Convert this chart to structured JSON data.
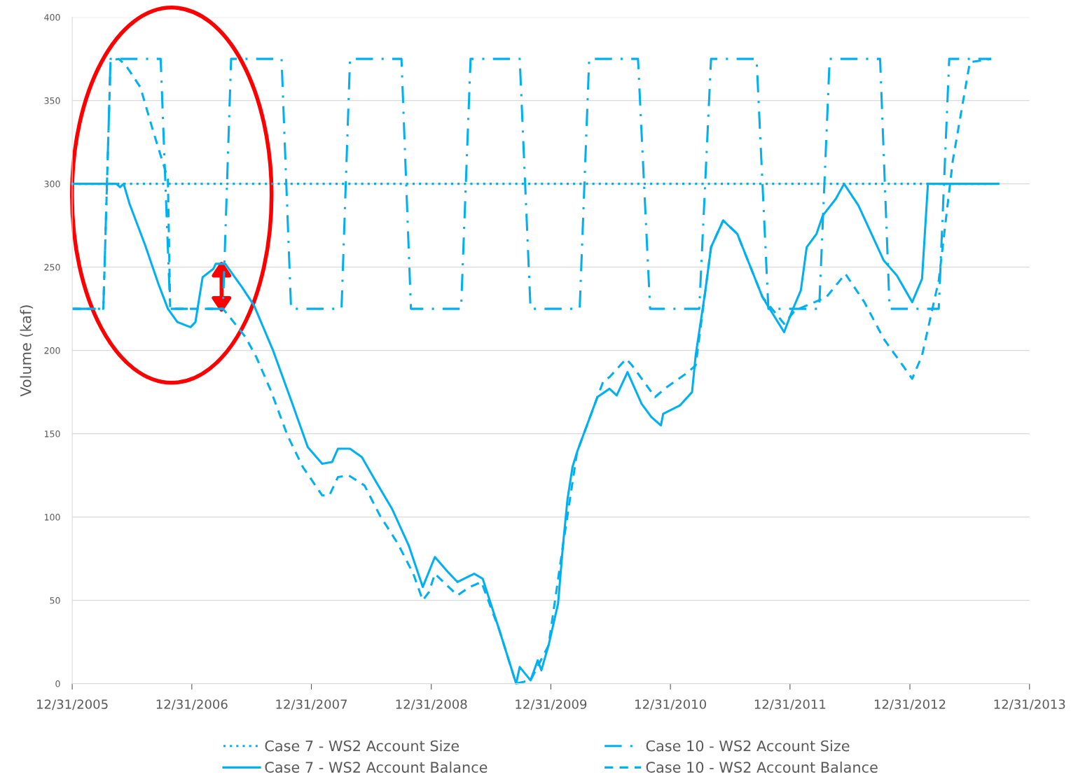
{
  "chart_data": {
    "type": "line",
    "ylabel": "Volume (kaf)",
    "xlim": [
      "2005-12-31",
      "2013-12-31"
    ],
    "xticks": [
      {
        "value": "2005-12-31",
        "label": "12/31/2005"
      },
      {
        "value": "2006-12-31",
        "label": "12/31/2006"
      },
      {
        "value": "2007-12-31",
        "label": "12/31/2007"
      },
      {
        "value": "2008-12-31",
        "label": "12/31/2008"
      },
      {
        "value": "2009-12-31",
        "label": "12/31/2009"
      },
      {
        "value": "2010-12-31",
        "label": "12/31/2010"
      },
      {
        "value": "2011-12-31",
        "label": "12/31/2011"
      },
      {
        "value": "2012-12-31",
        "label": "12/31/2012"
      },
      {
        "value": "2013-12-31",
        "label": "12/31/2013"
      }
    ],
    "ylim": [
      0,
      400
    ],
    "yticks": [
      0,
      50,
      100,
      150,
      200,
      250,
      300,
      350,
      400
    ],
    "grid": "y",
    "legend": "bottom",
    "marker": "none",
    "series": [
      {
        "name": "Case 7 - WS2 Account Size",
        "color": "#00b0f0",
        "line_style": "dotted",
        "x": [
          "2005-12-31",
          "2013-09-05"
        ],
        "values": [
          300,
          300
        ]
      },
      {
        "name": "Case 7 - WS2 Account Balance",
        "color": "#00b0f0",
        "line_style": "solid",
        "x": [
          "2005-12-31",
          "2006-05-15",
          "2006-05-26",
          "2006-06-06",
          "2006-06-24",
          "2006-08-11",
          "2006-09-20",
          "2006-10-19",
          "2006-11-17",
          "2006-12-27",
          "2007-01-11",
          "2007-02-02",
          "2007-03-07",
          "2007-03-14",
          "2007-04-12",
          "2007-06-02",
          "2007-07-09",
          "2007-09-05",
          "2007-11-03",
          "2007-12-20",
          "2008-02-02",
          "2008-03-03",
          "2008-03-21",
          "2008-04-27",
          "2008-06-02",
          "2008-07-16",
          "2008-09-02",
          "2008-10-23",
          "2008-12-05",
          "2009-01-11",
          "2009-02-20",
          "2009-03-21",
          "2009-05-11",
          "2009-06-06",
          "2009-07-27",
          "2009-09-16",
          "2009-09-27",
          "2009-10-30",
          "2009-11-21",
          "2009-12-02",
          "2009-12-24",
          "2010-01-22",
          "2010-02-06",
          "2010-02-20",
          "2010-03-07",
          "2010-03-21",
          "2010-05-22",
          "2010-06-28",
          "2010-07-20",
          "2010-08-22",
          "2010-10-04",
          "2010-11-03",
          "2010-12-02",
          "2010-12-09",
          "2011-01-29",
          "2011-03-07",
          "2011-03-18",
          "2011-04-16",
          "2011-05-04",
          "2011-06-10",
          "2011-07-23",
          "2011-10-08",
          "2011-12-13",
          "2012-01-07",
          "2012-02-02",
          "2012-02-20",
          "2012-03-21",
          "2012-04-09",
          "2012-05-19",
          "2012-06-13",
          "2012-07-27",
          "2012-10-12",
          "2012-11-21",
          "2013-01-07",
          "2013-02-06",
          "2013-02-24",
          "2013-09-27"
        ],
        "values": [
          300,
          300,
          298,
          300,
          288,
          263,
          240,
          225,
          217,
          214,
          217,
          244,
          249,
          252,
          252,
          238,
          227,
          200,
          168,
          142,
          132,
          133,
          141,
          141,
          136,
          121,
          105,
          83,
          58,
          76,
          67,
          61,
          66,
          63,
          32,
          0,
          10,
          2,
          14,
          8,
          23,
          48,
          83,
          111,
          130,
          139,
          172,
          177,
          173,
          187,
          168,
          160,
          155,
          162,
          167,
          175,
          197,
          235,
          262,
          278,
          270,
          232,
          211,
          224,
          236,
          262,
          270,
          281,
          291,
          300,
          287,
          254,
          245,
          229,
          243,
          300,
          300
        ]
      },
      {
        "name": "Case 10 - WS2 Account Size",
        "color": "#00b0f0",
        "line_style": "dashdot",
        "x": [
          "2005-12-31",
          "2006-04-05",
          "2006-04-27",
          "2006-09-27",
          "2006-10-26",
          "2007-04-05",
          "2007-04-30",
          "2007-10-01",
          "2007-10-30",
          "2008-04-01",
          "2008-04-27",
          "2008-10-01",
          "2008-10-30",
          "2009-04-01",
          "2009-04-30",
          "2009-09-27",
          "2009-10-30",
          "2010-03-29",
          "2010-04-27",
          "2010-09-23",
          "2010-10-30",
          "2011-03-29",
          "2011-05-04",
          "2011-09-20",
          "2011-10-26",
          "2012-03-29",
          "2012-04-30",
          "2012-10-01",
          "2012-10-30",
          "2013-03-29",
          "2013-04-30",
          "2013-09-05"
        ],
        "values": [
          225,
          225,
          375,
          375,
          225,
          225,
          375,
          375,
          225,
          225,
          375,
          375,
          225,
          225,
          375,
          375,
          225,
          225,
          375,
          375,
          225,
          225,
          375,
          375,
          225,
          225,
          375,
          375,
          225,
          225,
          375,
          375
        ]
      },
      {
        "name": "Case 10 - WS2 Account Balance",
        "color": "#00b0f0",
        "line_style": "dashed",
        "x": [
          "2005-12-31",
          "2006-04-05",
          "2006-04-27",
          "2006-05-22",
          "2006-06-13",
          "2006-07-27",
          "2006-09-05",
          "2006-10-19",
          "2006-10-26",
          "2007-04-05",
          "2007-04-30",
          "2007-06-13",
          "2007-07-16",
          "2007-08-29",
          "2007-10-19",
          "2007-12-05",
          "2008-02-02",
          "2008-02-24",
          "2008-03-21",
          "2008-04-23",
          "2008-06-10",
          "2008-07-27",
          "2008-09-20",
          "2008-11-06",
          "2008-12-05",
          "2008-12-24",
          "2009-01-11",
          "2009-02-06",
          "2009-03-21",
          "2009-04-27",
          "2009-06-02",
          "2009-07-27",
          "2009-09-16",
          "2009-10-30",
          "2009-12-24",
          "2010-02-06",
          "2010-03-21",
          "2010-06-10",
          "2010-06-28",
          "2010-08-18",
          "2010-09-05",
          "2010-11-14",
          "2010-12-20",
          "2011-02-16",
          "2011-03-18",
          "2011-04-16",
          "2011-05-04",
          "2011-06-10",
          "2011-07-23",
          "2011-10-08",
          "2011-11-14",
          "2011-12-13",
          "2012-01-15",
          "2012-04-20",
          "2012-06-17",
          "2012-08-14",
          "2012-10-12",
          "2013-01-07",
          "2013-02-06",
          "2013-03-29",
          "2013-05-11",
          "2013-07-02",
          "2013-09-05"
        ],
        "values": [
          225,
          225,
          374,
          375,
          371,
          358,
          331,
          303,
          225,
          225,
          219,
          208,
          196,
          176,
          149,
          130,
          113,
          113,
          124,
          125,
          119,
          101,
          84,
          66,
          50,
          55,
          66,
          61,
          53,
          58,
          61,
          32,
          0,
          2,
          23,
          83,
          139,
          182,
          184,
          195,
          191,
          172,
          178,
          186,
          191,
          235,
          262,
          278,
          270,
          232,
          223,
          216,
          224,
          232,
          246,
          229,
          207,
          183,
          197,
          242,
          314,
          373,
          375
        ]
      }
    ]
  }
}
